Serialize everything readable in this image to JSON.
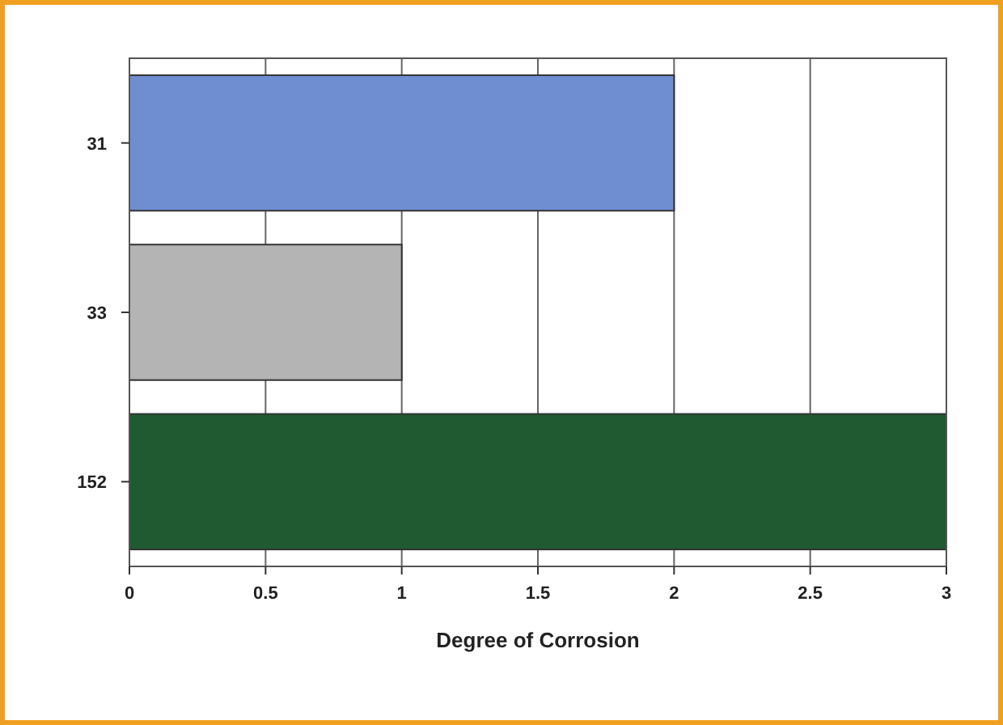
{
  "chart_data": {
    "type": "bar",
    "orientation": "horizontal",
    "categories": [
      "31",
      "33",
      "152"
    ],
    "values": [
      2,
      1,
      3
    ],
    "colors": [
      "#6f8ed2",
      "#b4b4b4",
      "#1f5a30"
    ],
    "xlabel": "Degree of Corrosion",
    "xlim": [
      0,
      3
    ],
    "xticks": [
      0,
      0.5,
      1,
      1.5,
      2,
      2.5,
      3
    ],
    "grid": "x"
  }
}
